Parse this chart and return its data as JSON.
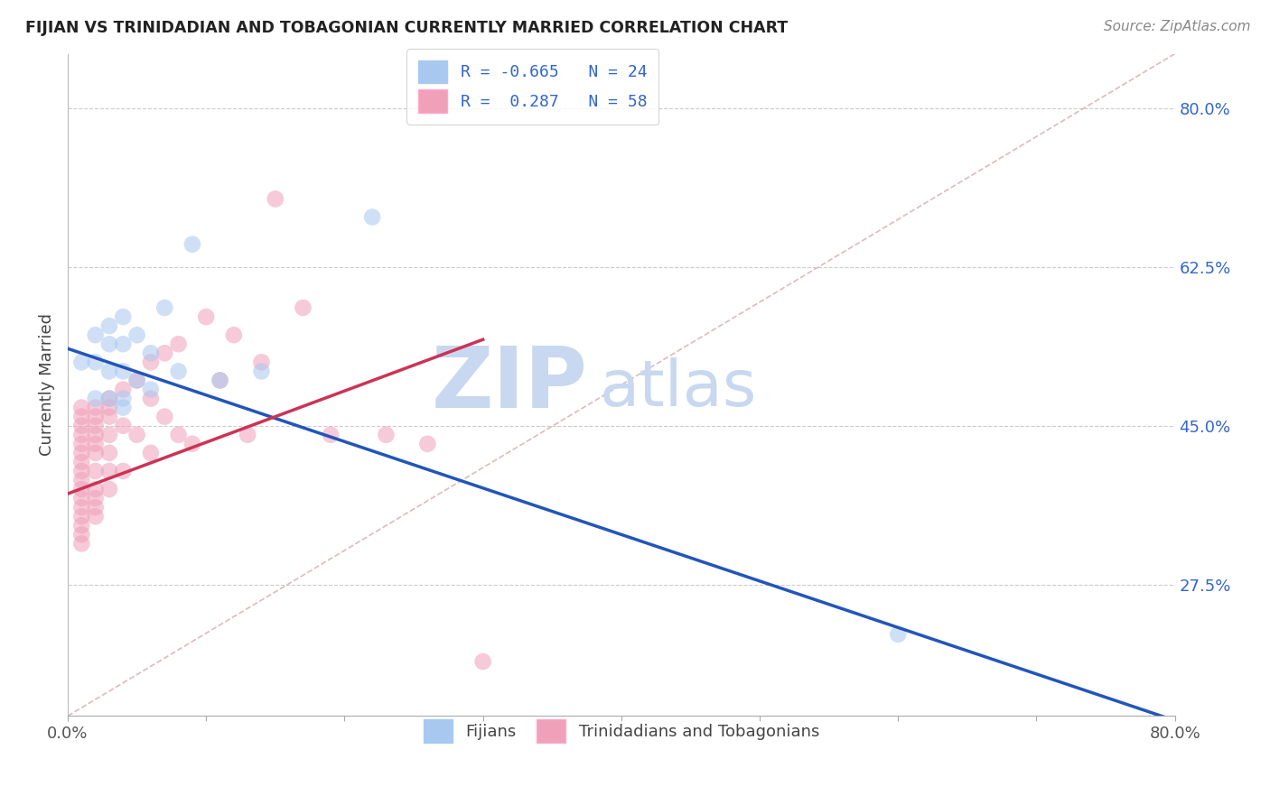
{
  "title": "FIJIAN VS TRINIDADIAN AND TOBAGONIAN CURRENTLY MARRIED CORRELATION CHART",
  "source": "Source: ZipAtlas.com",
  "ylabel": "Currently Married",
  "right_yticks": [
    0.275,
    0.45,
    0.625,
    0.8
  ],
  "right_yticklabels": [
    "27.5%",
    "45.0%",
    "62.5%",
    "80.0%"
  ],
  "xmin": 0.0,
  "xmax": 0.8,
  "ymin": 0.13,
  "ymax": 0.86,
  "legend_blue_r": "R = -0.665",
  "legend_blue_n": "N = 24",
  "legend_pink_r": "R =  0.287",
  "legend_pink_n": "N = 58",
  "blue_color": "#A8C8F0",
  "pink_color": "#F0A0B8",
  "blue_line_color": "#2255BB",
  "pink_line_color": "#CC3355",
  "ref_line_color": "#DDBBBB",
  "background_color": "#FFFFFF",
  "legend_label_blue": "Fijians",
  "legend_label_pink": "Trinidadians and Tobagonians",
  "blue_scatter_x": [
    0.01,
    0.02,
    0.02,
    0.02,
    0.03,
    0.03,
    0.03,
    0.03,
    0.04,
    0.04,
    0.04,
    0.04,
    0.04,
    0.05,
    0.05,
    0.06,
    0.06,
    0.07,
    0.08,
    0.09,
    0.11,
    0.14,
    0.22,
    0.6
  ],
  "blue_scatter_y": [
    0.52,
    0.55,
    0.52,
    0.48,
    0.56,
    0.54,
    0.51,
    0.48,
    0.57,
    0.54,
    0.51,
    0.48,
    0.47,
    0.55,
    0.5,
    0.53,
    0.49,
    0.58,
    0.51,
    0.65,
    0.5,
    0.51,
    0.68,
    0.22
  ],
  "pink_scatter_x": [
    0.01,
    0.01,
    0.01,
    0.01,
    0.01,
    0.01,
    0.01,
    0.01,
    0.01,
    0.01,
    0.01,
    0.01,
    0.01,
    0.01,
    0.01,
    0.01,
    0.02,
    0.02,
    0.02,
    0.02,
    0.02,
    0.02,
    0.02,
    0.02,
    0.02,
    0.02,
    0.02,
    0.03,
    0.03,
    0.03,
    0.03,
    0.03,
    0.03,
    0.03,
    0.04,
    0.04,
    0.04,
    0.05,
    0.05,
    0.06,
    0.06,
    0.06,
    0.07,
    0.07,
    0.08,
    0.08,
    0.09,
    0.1,
    0.11,
    0.12,
    0.13,
    0.14,
    0.15,
    0.17,
    0.19,
    0.23,
    0.26,
    0.3
  ],
  "pink_scatter_y": [
    0.47,
    0.46,
    0.45,
    0.44,
    0.43,
    0.42,
    0.41,
    0.4,
    0.39,
    0.38,
    0.37,
    0.36,
    0.35,
    0.34,
    0.33,
    0.32,
    0.47,
    0.46,
    0.45,
    0.44,
    0.43,
    0.42,
    0.4,
    0.38,
    0.37,
    0.36,
    0.35,
    0.48,
    0.47,
    0.46,
    0.44,
    0.42,
    0.4,
    0.38,
    0.49,
    0.45,
    0.4,
    0.5,
    0.44,
    0.52,
    0.48,
    0.42,
    0.53,
    0.46,
    0.54,
    0.44,
    0.43,
    0.57,
    0.5,
    0.55,
    0.44,
    0.52,
    0.7,
    0.58,
    0.44,
    0.44,
    0.43,
    0.19
  ],
  "blue_line_x": [
    0.0,
    0.8
  ],
  "blue_line_y": [
    0.535,
    0.125
  ],
  "pink_line_x": [
    0.0,
    0.3
  ],
  "pink_line_y": [
    0.375,
    0.545
  ],
  "ref_line_x": [
    0.0,
    0.8
  ],
  "ref_line_y": [
    0.13,
    0.86
  ],
  "gridline_y": [
    0.275,
    0.45,
    0.625,
    0.8
  ],
  "xticks": [
    0.0,
    0.1,
    0.2,
    0.3,
    0.4,
    0.5,
    0.6,
    0.7,
    0.8
  ],
  "watermark_zip": "ZIP",
  "watermark_atlas": "atlas",
  "watermark_color": "#C8D8F0",
  "watermark_fontsize_zip": 68,
  "watermark_fontsize_atlas": 52
}
